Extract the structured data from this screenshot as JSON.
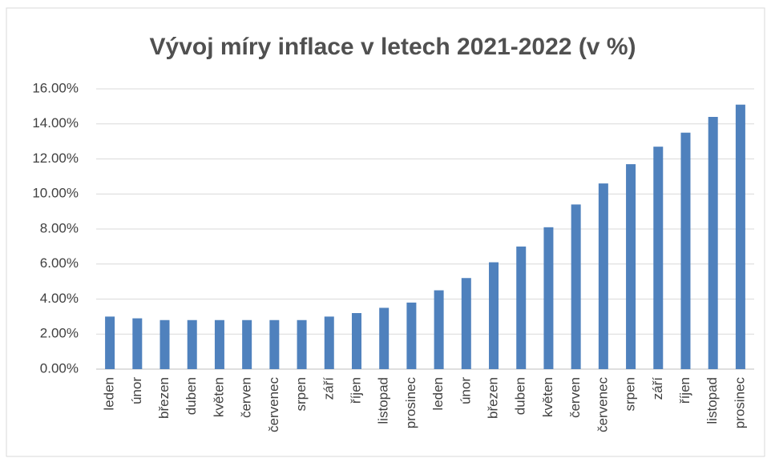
{
  "chart_data": {
    "type": "bar",
    "title": "Vývoj míry inflace v letech 2021-2022 (v %)",
    "categories": [
      "leden",
      "únor",
      "březen",
      "duben",
      "květen",
      "červen",
      "červenec",
      "srpen",
      "září",
      "říjen",
      "listopad",
      "prosinec",
      "leden",
      "únor",
      "březen",
      "duben",
      "květen",
      "červen",
      "červenec",
      "srpen",
      "září",
      "říjen",
      "listopad",
      "prosinec"
    ],
    "values": [
      3.0,
      2.9,
      2.8,
      2.8,
      2.8,
      2.8,
      2.8,
      2.8,
      3.0,
      3.2,
      3.5,
      3.8,
      4.5,
      5.2,
      6.1,
      7.0,
      8.1,
      9.4,
      10.6,
      11.7,
      12.7,
      13.5,
      14.4,
      15.1
    ],
    "color": "#4f81bd",
    "ylim": [
      0,
      16
    ],
    "yticks": [
      {
        "value": 0,
        "label": "0.00%"
      },
      {
        "value": 2,
        "label": "2.00%"
      },
      {
        "value": 4,
        "label": "4.00%"
      },
      {
        "value": 6,
        "label": "6.00%"
      },
      {
        "value": 8,
        "label": "8.00%"
      },
      {
        "value": 10,
        "label": "10.00%"
      },
      {
        "value": 12,
        "label": "12.00%"
      },
      {
        "value": 14,
        "label": "14.00%"
      },
      {
        "value": 16,
        "label": "16.00%"
      }
    ],
    "grid": true
  }
}
